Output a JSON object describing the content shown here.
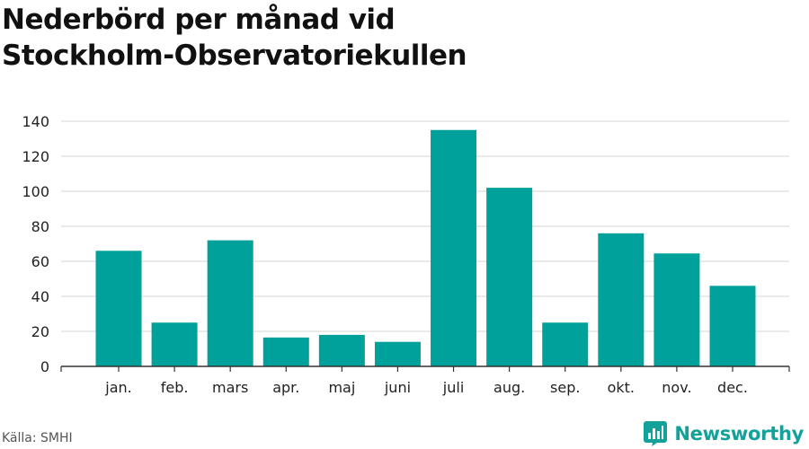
{
  "title_lines": [
    "Nederbörd per månad vid",
    "Stockholm-Observatoriekullen"
  ],
  "source": "Källa: SMHI",
  "brand": {
    "name": "Newsworthy",
    "color": "#13a29a",
    "icon": "bar-chart-badge-icon"
  },
  "colors": {
    "bar": "#00a19a",
    "grid": "#dddddd",
    "axis": "#333333"
  },
  "chart_data": {
    "type": "bar",
    "title": "Nederbörd per månad vid Stockholm-Observatoriekullen",
    "xlabel": "",
    "ylabel": "",
    "categories": [
      "jan.",
      "feb.",
      "mars",
      "apr.",
      "maj",
      "juni",
      "juli",
      "aug.",
      "sep.",
      "okt.",
      "nov.",
      "dec."
    ],
    "values": [
      66,
      25,
      72,
      16.5,
      18,
      14,
      135,
      102,
      25,
      76,
      64.5,
      46
    ],
    "ylim": [
      0,
      140
    ],
    "yticks": [
      0,
      20,
      40,
      60,
      80,
      100,
      120,
      140
    ],
    "grid": true,
    "legend": "none"
  }
}
